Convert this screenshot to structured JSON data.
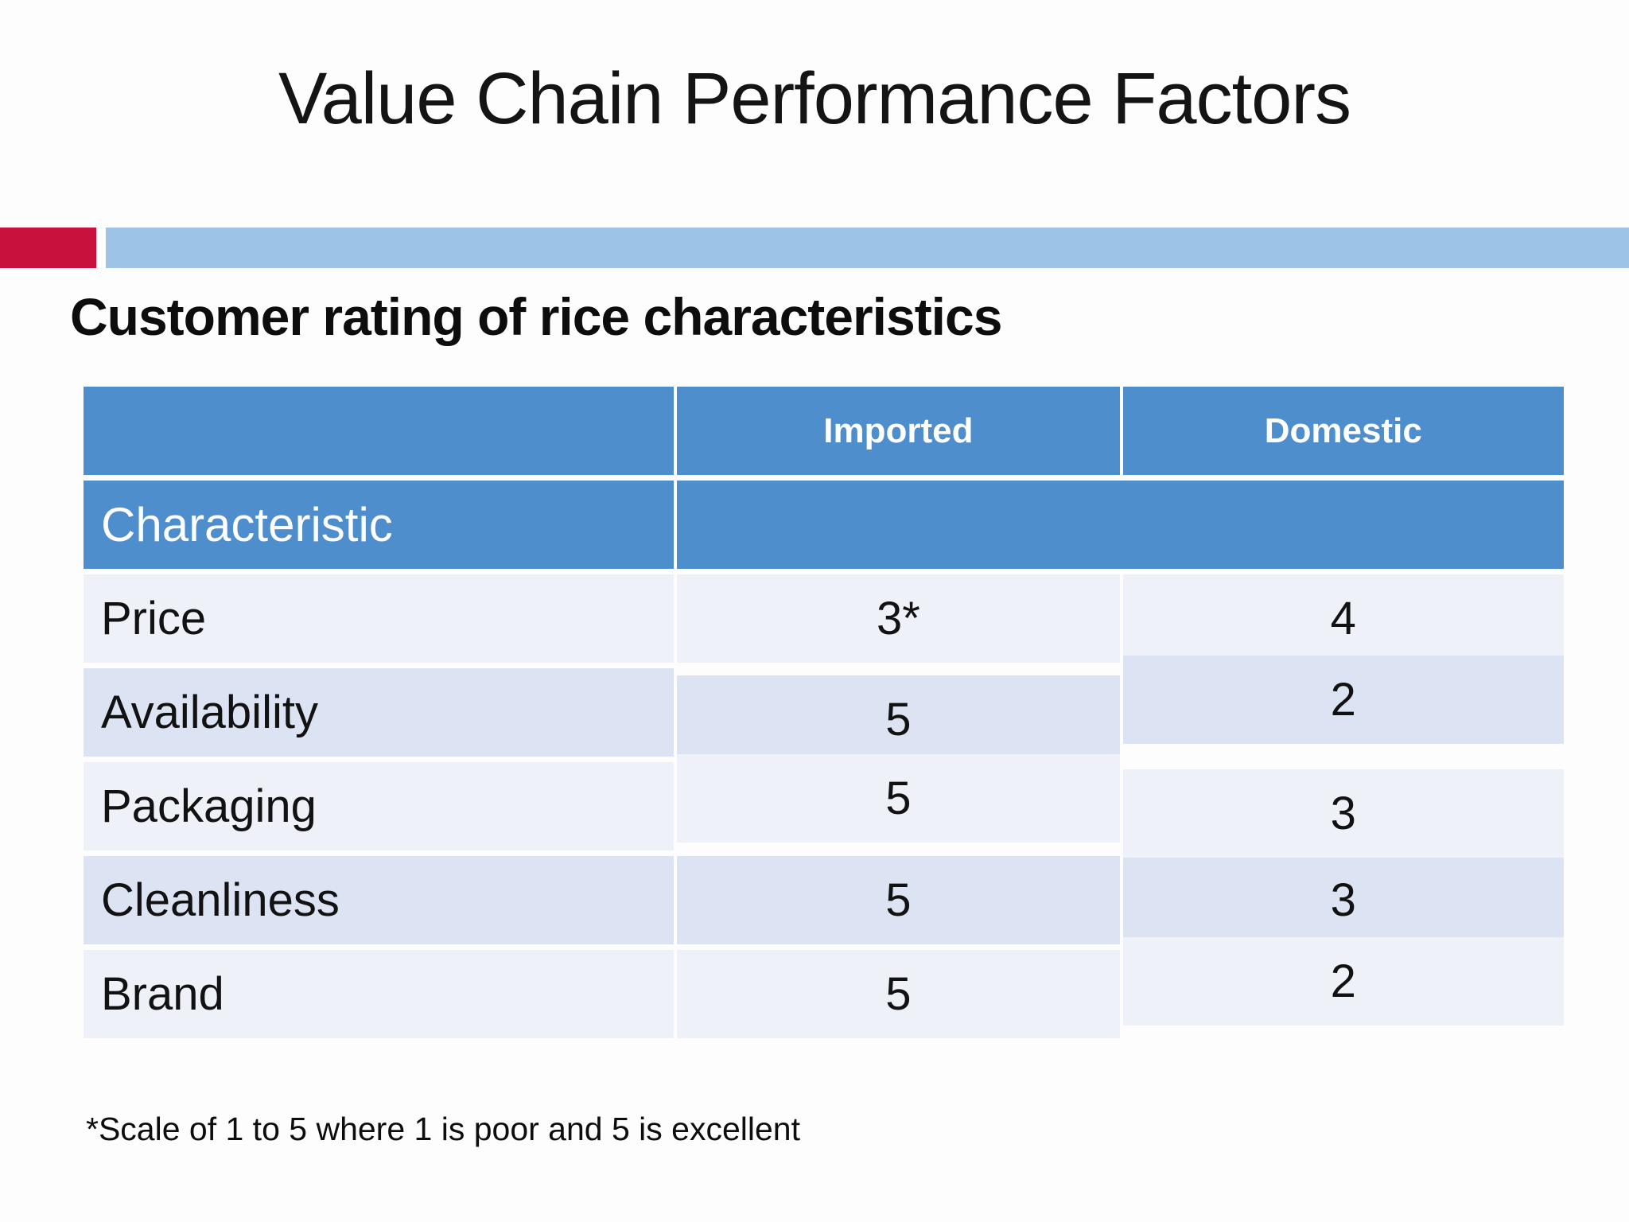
{
  "slide": {
    "title": "Value Chain Performance Factors",
    "subtitle": "Customer rating of rice characteristics",
    "footnote": "*Scale of 1 to 5 where 1 is poor and 5 is excellent"
  },
  "colors": {
    "accent_red": "#c8113c",
    "accent_light_blue": "#9dc3e6",
    "table_header_blue": "#4e8ecd",
    "row_light": "#eff1f9",
    "row_shaded": "#dce3f2",
    "header_text": "#ffffff",
    "body_text": "#121212"
  },
  "table": {
    "column_headers": {
      "corner": "",
      "imported": "Imported",
      "domestic": "Domestic"
    },
    "row_header_label": "Characteristic",
    "rating_scale_note": "*Scale of 1 to 5 where 1 is poor and 5 is excellent",
    "rows": [
      {
        "label": "Price",
        "imported": "3*",
        "domestic": "4"
      },
      {
        "label": "Availability",
        "imported": "5",
        "domestic": "2"
      },
      {
        "label": "Packaging",
        "imported": "5",
        "domestic": "3"
      },
      {
        "label": "Cleanliness",
        "imported": "5",
        "domestic": "3"
      },
      {
        "label": "Brand",
        "imported": "5",
        "domestic": "2"
      }
    ]
  }
}
